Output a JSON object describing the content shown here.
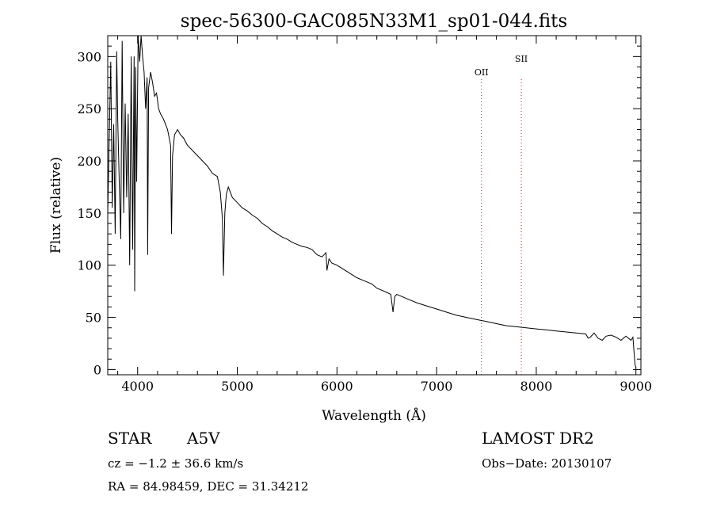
{
  "chart_data": {
    "type": "line",
    "title": "spec-56300-GAC085N33M1_sp01-044.fits",
    "xlabel": "Wavelength (Å)",
    "ylabel": "Flux (relative)",
    "xlim": [
      3700,
      9050
    ],
    "ylim": [
      -5,
      320
    ],
    "xticks": [
      4000,
      5000,
      6000,
      7000,
      8000,
      9000
    ],
    "yticks": [
      0,
      50,
      100,
      150,
      200,
      250,
      300
    ],
    "grid": false,
    "series": [
      {
        "color": "#000000",
        "x": [
          3700,
          3730,
          3745,
          3760,
          3775,
          3790,
          3800,
          3815,
          3830,
          3845,
          3860,
          3875,
          3890,
          3905,
          3920,
          3935,
          3950,
          3965,
          3970,
          3980,
          3990,
          4005,
          4020,
          4035,
          4050,
          4065,
          4080,
          4095,
          4101,
          4110,
          4130,
          4150,
          4170,
          4190,
          4210,
          4230,
          4260,
          4300,
          4330,
          4340,
          4350,
          4370,
          4400,
          4430,
          4460,
          4500,
          4550,
          4600,
          4650,
          4700,
          4750,
          4800,
          4830,
          4850,
          4861,
          4875,
          4890,
          4910,
          4950,
          5000,
          5050,
          5100,
          5150,
          5200,
          5250,
          5300,
          5350,
          5400,
          5450,
          5500,
          5550,
          5600,
          5650,
          5700,
          5750,
          5800,
          5850,
          5890,
          5900,
          5920,
          5950,
          6000,
          6050,
          6100,
          6150,
          6200,
          6250,
          6300,
          6350,
          6400,
          6450,
          6500,
          6540,
          6563,
          6580,
          6600,
          6650,
          6700,
          6800,
          6900,
          7000,
          7100,
          7200,
          7300,
          7400,
          7500,
          7600,
          7700,
          7800,
          7900,
          8000,
          8100,
          8200,
          8300,
          8400,
          8498,
          8520,
          8542,
          8580,
          8620,
          8662,
          8700,
          8750,
          8800,
          8850,
          8900,
          8950,
          8970,
          8990,
          9000
        ],
        "values": [
          150,
          295,
          155,
          235,
          130,
          305,
          240,
          180,
          125,
          315,
          150,
          255,
          165,
          245,
          100,
          300,
          115,
          300,
          75,
          290,
          180,
          320,
          295,
          320,
          300,
          285,
          250,
          280,
          110,
          270,
          285,
          275,
          262,
          265,
          250,
          245,
          240,
          230,
          215,
          130,
          205,
          225,
          230,
          225,
          222,
          215,
          210,
          205,
          200,
          195,
          188,
          185,
          170,
          145,
          90,
          150,
          168,
          175,
          165,
          160,
          155,
          152,
          148,
          145,
          140,
          137,
          133,
          130,
          127,
          125,
          122,
          120,
          118,
          117,
          115,
          110,
          108,
          112,
          95,
          106,
          102,
          100,
          97,
          94,
          91,
          88,
          86,
          84,
          82,
          78,
          76,
          74,
          72,
          55,
          70,
          72,
          70,
          68,
          64,
          61,
          58,
          55,
          52,
          50,
          48,
          46,
          44,
          42,
          41,
          40,
          39,
          38,
          37,
          36,
          35,
          34,
          30,
          31,
          35,
          30,
          28,
          32,
          33,
          31,
          28,
          32,
          28,
          31,
          5,
          2
        ]
      }
    ],
    "annotations": [
      {
        "label": "OII",
        "x": 7450,
        "label_y": 282
      },
      {
        "label": "SII",
        "x": 7850,
        "label_y": 295
      }
    ],
    "line_color": "#000000",
    "marker_color": "#ff0000"
  },
  "footer": {
    "object_type": "STAR",
    "spectral_class": "A5V",
    "survey": "LAMOST DR2",
    "velocity": "cz = −1.2 ± 36.6 km/s",
    "obs_date": "Obs−Date: 20130107",
    "coords": "RA =  84.98459, DEC =  31.34212"
  }
}
